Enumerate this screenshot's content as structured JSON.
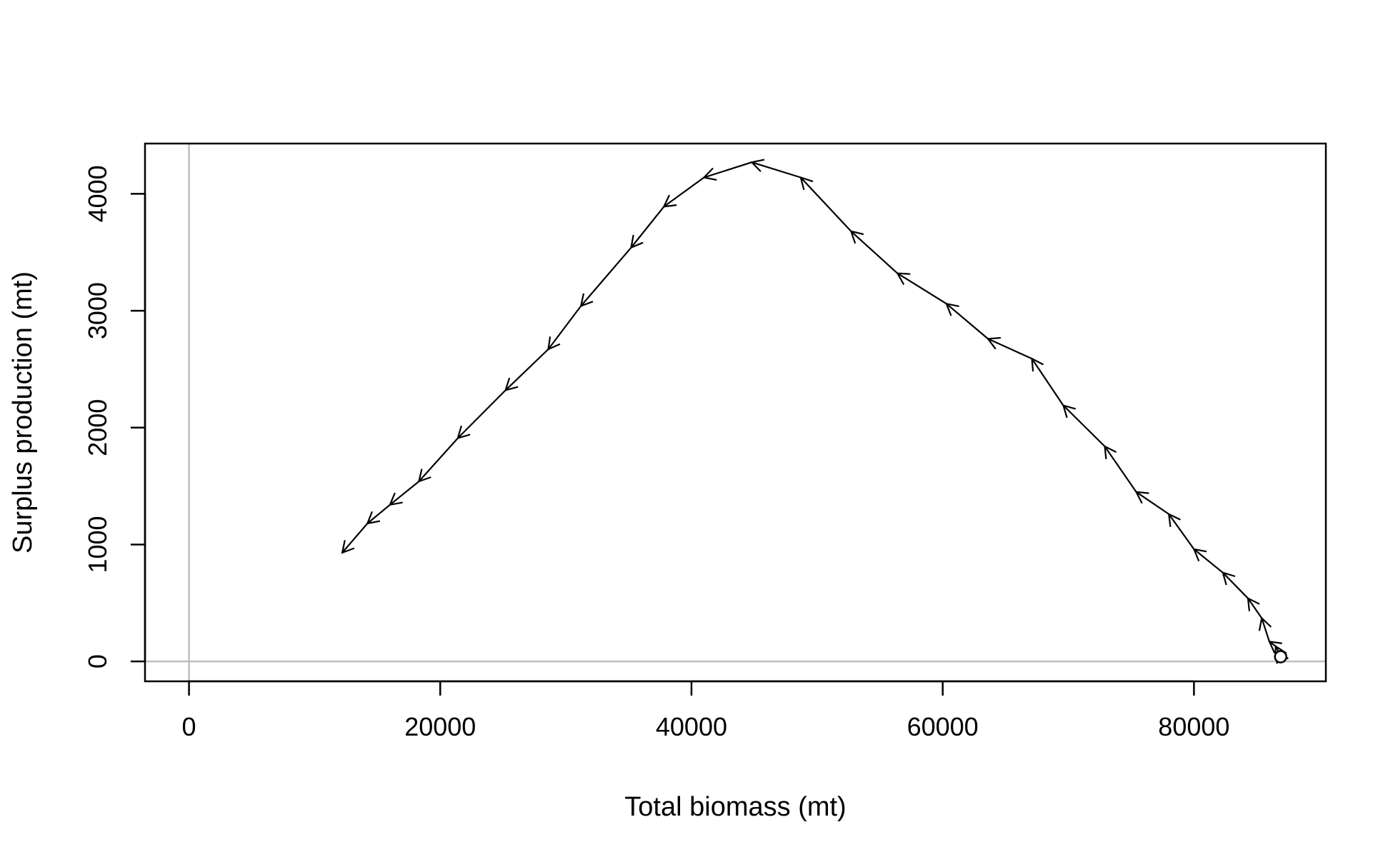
{
  "chart_data": {
    "type": "line",
    "title": "",
    "xlabel": "Total biomass (mt)",
    "ylabel": "Surplus production (mt)",
    "xlim": [
      -3500,
      90500
    ],
    "ylim": [
      -170,
      4430
    ],
    "x_ticks": [
      0,
      20000,
      40000,
      60000,
      80000
    ],
    "x_tick_labels": [
      "0",
      "20000",
      "40000",
      "60000",
      "80000"
    ],
    "y_ticks": [
      0,
      1000,
      2000,
      3000,
      4000
    ],
    "y_tick_labels": [
      "0",
      "1000",
      "2000",
      "3000",
      "4000"
    ],
    "reference_lines": {
      "x": 0,
      "y": 0,
      "color": "#bebebe"
    },
    "line_color": "#000000",
    "direction_arrows": true,
    "start_marker": "open-circle",
    "series": [
      {
        "x": [
          86900,
          86700,
          86500,
          86000,
          85400,
          84300,
          82300,
          80000,
          78000,
          75400,
          72900,
          69600,
          67100,
          63600,
          60300,
          56400,
          52700,
          48700,
          44800,
          41000,
          37800,
          35200,
          31200,
          28600,
          25200,
          21400,
          18300,
          16000,
          14200,
          12200
        ],
        "y": [
          40,
          90,
          130,
          170,
          370,
          540,
          760,
          960,
          1260,
          1450,
          1840,
          2190,
          2590,
          2760,
          3060,
          3320,
          3680,
          4140,
          4270,
          4140,
          3890,
          3540,
          3040,
          2670,
          2320,
          1910,
          1540,
          1340,
          1180,
          930
        ]
      }
    ]
  }
}
